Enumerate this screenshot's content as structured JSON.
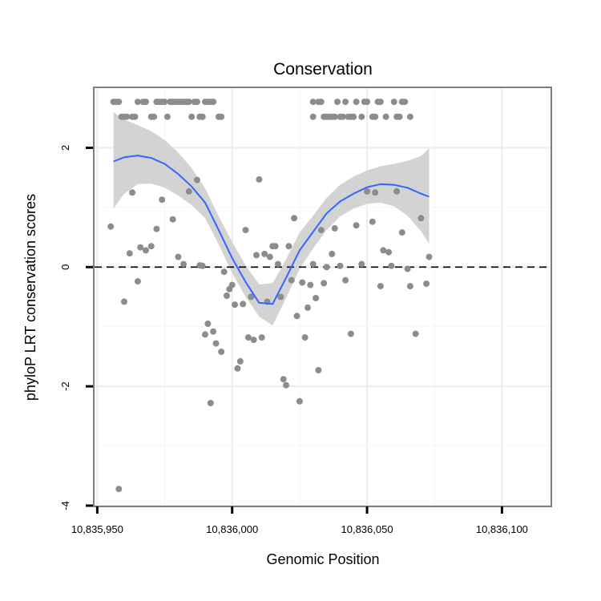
{
  "chart_data": {
    "type": "scatter",
    "title": "Conservation",
    "xlabel": "Genomic Position",
    "ylabel": "phyloP LRT conservation scores",
    "xlim": [
      10835949,
      10836118
    ],
    "ylim": [
      -4.0,
      3.0
    ],
    "x_ticks": [
      10835950,
      10836000,
      10836050,
      10836100
    ],
    "x_tick_labels": [
      "10,835,950",
      "10,836,000",
      "10,836,050",
      "10,836,100"
    ],
    "y_ticks": [
      -4,
      -2,
      0,
      2
    ],
    "y_tick_labels": [
      "-4",
      "-2",
      "0",
      "2"
    ],
    "reference_line": {
      "y": 0,
      "style": "dashed"
    },
    "grid": true,
    "point_color": "#8c8c8c",
    "smooth_color": "#3366ff",
    "ribbon_color": "#d3d3d3",
    "points": [
      [
        10835956,
        2.77
      ],
      [
        10835957,
        2.77
      ],
      [
        10835958,
        2.77
      ],
      [
        10835959,
        2.52
      ],
      [
        10835960,
        2.52
      ],
      [
        10835961,
        2.52
      ],
      [
        10835963,
        2.52
      ],
      [
        10835964,
        2.52
      ],
      [
        10835965,
        2.77
      ],
      [
        10835967,
        2.77
      ],
      [
        10835968,
        2.77
      ],
      [
        10835970,
        2.52
      ],
      [
        10835971,
        2.52
      ],
      [
        10835972,
        2.77
      ],
      [
        10835973,
        2.77
      ],
      [
        10835974,
        2.77
      ],
      [
        10835975,
        2.77
      ],
      [
        10835976,
        2.52
      ],
      [
        10835977,
        2.77
      ],
      [
        10835978,
        2.77
      ],
      [
        10835979,
        2.77
      ],
      [
        10835980,
        2.77
      ],
      [
        10835981,
        2.77
      ],
      [
        10835982,
        2.77
      ],
      [
        10835983,
        2.77
      ],
      [
        10835984,
        2.77
      ],
      [
        10835985,
        2.52
      ],
      [
        10835986,
        2.77
      ],
      [
        10835987,
        2.77
      ],
      [
        10835988,
        2.52
      ],
      [
        10835989,
        2.52
      ],
      [
        10835990,
        2.77
      ],
      [
        10835991,
        2.77
      ],
      [
        10835992,
        2.77
      ],
      [
        10835993,
        2.77
      ],
      [
        10835995,
        2.52
      ],
      [
        10835996,
        2.52
      ],
      [
        10835955,
        0.68
      ],
      [
        10835958,
        -3.72
      ],
      [
        10835960,
        -0.58
      ],
      [
        10835962,
        0.23
      ],
      [
        10835963,
        1.25
      ],
      [
        10835965,
        -0.24
      ],
      [
        10835966,
        0.33
      ],
      [
        10835968,
        0.28
      ],
      [
        10835970,
        0.35
      ],
      [
        10835972,
        0.64
      ],
      [
        10835974,
        1.13
      ],
      [
        10835978,
        0.8
      ],
      [
        10835980,
        0.17
      ],
      [
        10835982,
        0.05
      ],
      [
        10835984,
        1.27
      ],
      [
        10835987,
        1.46
      ],
      [
        10835988,
        0.03
      ],
      [
        10835989,
        0.02
      ],
      [
        10835990,
        -1.13
      ],
      [
        10835991,
        -0.95
      ],
      [
        10835992,
        -2.28
      ],
      [
        10835993,
        -1.08
      ],
      [
        10835994,
        -1.28
      ],
      [
        10835996,
        -1.42
      ],
      [
        10835997,
        -0.08
      ],
      [
        10835998,
        -0.48
      ],
      [
        10835999,
        -0.37
      ],
      [
        10836000,
        -0.3
      ],
      [
        10836001,
        -0.63
      ],
      [
        10836002,
        -1.7
      ],
      [
        10836003,
        -1.58
      ],
      [
        10836004,
        -0.62
      ],
      [
        10836005,
        0.62
      ],
      [
        10836006,
        -1.18
      ],
      [
        10836007,
        -0.5
      ],
      [
        10836008,
        -1.22
      ],
      [
        10836009,
        0.2
      ],
      [
        10836010,
        1.47
      ],
      [
        10836011,
        -1.18
      ],
      [
        10836012,
        0.22
      ],
      [
        10836013,
        -0.58
      ],
      [
        10836014,
        0.17
      ],
      [
        10836015,
        0.35
      ],
      [
        10836016,
        0.35
      ],
      [
        10836017,
        0.05
      ],
      [
        10836018,
        -0.5
      ],
      [
        10836019,
        -1.88
      ],
      [
        10836020,
        -1.98
      ],
      [
        10836021,
        0.35
      ],
      [
        10836022,
        -0.22
      ],
      [
        10836023,
        0.82
      ],
      [
        10836024,
        -0.82
      ],
      [
        10836025,
        -2.25
      ],
      [
        10836026,
        -0.26
      ],
      [
        10836027,
        -1.18
      ],
      [
        10836028,
        -0.68
      ],
      [
        10836029,
        -0.3
      ],
      [
        10836030,
        0.05
      ],
      [
        10836031,
        -0.52
      ],
      [
        10836032,
        -1.73
      ],
      [
        10836033,
        0.62
      ],
      [
        10836034,
        -0.27
      ],
      [
        10836035,
        0.0
      ],
      [
        10836037,
        0.22
      ],
      [
        10836038,
        0.65
      ],
      [
        10836040,
        0.02
      ],
      [
        10836042,
        -0.22
      ],
      [
        10836044,
        -1.12
      ],
      [
        10836046,
        0.7
      ],
      [
        10836048,
        0.05
      ],
      [
        10836050,
        1.27
      ],
      [
        10836052,
        0.76
      ],
      [
        10836053,
        1.25
      ],
      [
        10836055,
        -0.32
      ],
      [
        10836056,
        0.28
      ],
      [
        10836058,
        0.25
      ],
      [
        10836059,
        0.02
      ],
      [
        10836061,
        1.27
      ],
      [
        10836063,
        0.58
      ],
      [
        10836065,
        -0.03
      ],
      [
        10836066,
        -0.32
      ],
      [
        10836068,
        -1.12
      ],
      [
        10836070,
        0.82
      ],
      [
        10836072,
        -0.28
      ],
      [
        10836073,
        0.17
      ],
      [
        10836030,
        2.77
      ],
      [
        10836030,
        2.52
      ],
      [
        10836032,
        2.77
      ],
      [
        10836033,
        2.77
      ],
      [
        10836034,
        2.52
      ],
      [
        10836035,
        2.52
      ],
      [
        10836036,
        2.52
      ],
      [
        10836037,
        2.52
      ],
      [
        10836038,
        2.52
      ],
      [
        10836039,
        2.77
      ],
      [
        10836040,
        2.52
      ],
      [
        10836041,
        2.52
      ],
      [
        10836042,
        2.77
      ],
      [
        10836043,
        2.52
      ],
      [
        10836044,
        2.52
      ],
      [
        10836045,
        2.52
      ],
      [
        10836046,
        2.77
      ],
      [
        10836048,
        2.52
      ],
      [
        10836049,
        2.77
      ],
      [
        10836050,
        2.77
      ],
      [
        10836052,
        2.52
      ],
      [
        10836053,
        2.52
      ],
      [
        10836054,
        2.77
      ],
      [
        10836055,
        2.77
      ],
      [
        10836057,
        2.52
      ],
      [
        10836060,
        2.77
      ],
      [
        10836061,
        2.52
      ],
      [
        10836062,
        2.52
      ],
      [
        10836063,
        2.77
      ],
      [
        10836064,
        2.77
      ],
      [
        10836066,
        2.52
      ]
    ],
    "smooth_x": [
      10835956,
      10835960,
      10835965,
      10835970,
      10835975,
      10835980,
      10835985,
      10835990,
      10835995,
      10836000,
      10836005,
      10836010,
      10836015,
      10836020,
      10836025,
      10836030,
      10836035,
      10836040,
      10836045,
      10836050,
      10836055,
      10836060,
      10836065,
      10836070,
      10836073
    ],
    "smooth_y": [
      1.77,
      1.84,
      1.87,
      1.83,
      1.73,
      1.56,
      1.35,
      1.08,
      0.62,
      0.15,
      -0.25,
      -0.6,
      -0.62,
      -0.18,
      0.28,
      0.59,
      0.9,
      1.1,
      1.23,
      1.34,
      1.39,
      1.38,
      1.33,
      1.23,
      1.18
    ],
    "ribbon_upper": [
      2.6,
      2.47,
      2.38,
      2.28,
      2.13,
      1.92,
      1.66,
      1.32,
      0.85,
      0.42,
      0.03,
      -0.29,
      -0.27,
      0.13,
      0.58,
      0.86,
      1.16,
      1.38,
      1.52,
      1.62,
      1.69,
      1.73,
      1.78,
      1.86,
      1.99
    ],
    "ribbon_lower": [
      0.98,
      1.23,
      1.39,
      1.4,
      1.33,
      1.2,
      1.04,
      0.82,
      0.38,
      -0.1,
      -0.5,
      -0.83,
      -0.98,
      -0.52,
      -0.03,
      0.31,
      0.62,
      0.85,
      0.98,
      1.06,
      1.08,
      1.02,
      0.86,
      0.6,
      0.39
    ]
  }
}
